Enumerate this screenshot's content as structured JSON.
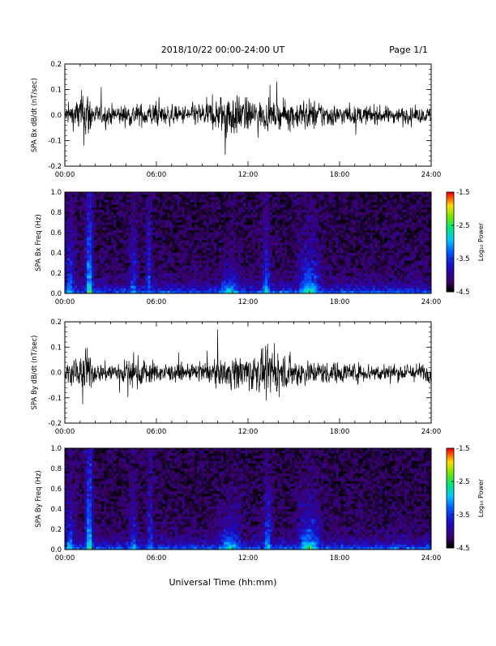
{
  "header": {
    "title": "2018/10/22  00:00-24:00 UT",
    "page": "Page 1/1"
  },
  "footer": {
    "xlabel": "Universal Time (hh:mm)"
  },
  "colorbar": {
    "label": "Log₁₀ Power",
    "ticks": [
      "-1.5",
      "-2.5",
      "-3.5",
      "-4.5"
    ],
    "range": [
      -4.5,
      -1.5
    ]
  },
  "chart_data": [
    {
      "type": "line",
      "ylabel": "SPA Bx dB/dt (nT/sec)",
      "ylim": [
        -0.2,
        0.2
      ],
      "yticks": [
        "0.2",
        "0.1",
        "0.0",
        "-0.1",
        "-0.2"
      ],
      "xlim_hours": [
        0,
        24
      ],
      "xticks": [
        "00:00",
        "06:00",
        "12:00",
        "18:00",
        "24:00"
      ],
      "amplitude_profile": [
        {
          "t": 0.0,
          "a": 0.07
        },
        {
          "t": 0.7,
          "a": 0.12
        },
        {
          "t": 1.4,
          "a": 0.25
        },
        {
          "t": 2.0,
          "a": 0.08
        },
        {
          "t": 4.5,
          "a": 0.09
        },
        {
          "t": 5.5,
          "a": 0.1
        },
        {
          "t": 7.5,
          "a": 0.07
        },
        {
          "t": 10.0,
          "a": 0.13
        },
        {
          "t": 10.6,
          "a": 0.22
        },
        {
          "t": 11.5,
          "a": 0.15
        },
        {
          "t": 13.5,
          "a": 0.1
        },
        {
          "t": 16.0,
          "a": 0.13
        },
        {
          "t": 18.0,
          "a": 0.08
        },
        {
          "t": 21.0,
          "a": 0.07
        },
        {
          "t": 24.0,
          "a": 0.06
        }
      ]
    },
    {
      "type": "heatmap",
      "ylabel": "SPA Bx Freq (Hz)",
      "ylim": [
        0.0,
        1.0
      ],
      "yticks": [
        "1.0",
        "0.8",
        "0.6",
        "0.4",
        "0.2",
        "0.0"
      ],
      "xlim_hours": [
        0,
        24
      ],
      "xticks": [
        "00:00",
        "06:00",
        "12:00",
        "18:00",
        "24:00"
      ],
      "zlim": [
        -4.5,
        -1.5
      ],
      "features": [
        {
          "t": 0.3,
          "w": 0.4,
          "f": 0.55,
          "z": -3.4
        },
        {
          "t": 1.6,
          "w": 0.25,
          "f": 1.0,
          "z": -2.9
        },
        {
          "t": 4.5,
          "w": 0.3,
          "f": 0.6,
          "z": -3.5
        },
        {
          "t": 5.5,
          "w": 0.2,
          "f": 0.9,
          "z": -3.5
        },
        {
          "t": 10.8,
          "w": 0.8,
          "f": 0.2,
          "z": -3.3
        },
        {
          "t": 13.2,
          "w": 0.3,
          "f": 0.45,
          "z": -3.2
        },
        {
          "t": 16.0,
          "w": 0.8,
          "f": 0.35,
          "z": -3.1
        }
      ]
    },
    {
      "type": "line",
      "ylabel": "SPA By dB/dt (nT/sec)",
      "ylim": [
        -0.2,
        0.2
      ],
      "yticks": [
        "0.2",
        "0.1",
        "0.0",
        "-0.1",
        "-0.2"
      ],
      "xlim_hours": [
        0,
        24
      ],
      "xticks": [
        "00:00",
        "06:00",
        "12:00",
        "18:00",
        "24:00"
      ],
      "amplitude_profile": [
        {
          "t": 0.0,
          "a": 0.06
        },
        {
          "t": 0.8,
          "a": 0.12
        },
        {
          "t": 1.4,
          "a": 0.2
        },
        {
          "t": 2.0,
          "a": 0.07
        },
        {
          "t": 5.0,
          "a": 0.12
        },
        {
          "t": 6.0,
          "a": 0.08
        },
        {
          "t": 8.0,
          "a": 0.06
        },
        {
          "t": 10.5,
          "a": 0.11
        },
        {
          "t": 11.2,
          "a": 0.14
        },
        {
          "t": 13.3,
          "a": 0.17
        },
        {
          "t": 16.0,
          "a": 0.1
        },
        {
          "t": 19.0,
          "a": 0.08
        },
        {
          "t": 22.0,
          "a": 0.07
        },
        {
          "t": 24.0,
          "a": 0.08
        }
      ]
    },
    {
      "type": "heatmap",
      "ylabel": "SPA By Freq (Hz)",
      "ylim": [
        0.0,
        1.0
      ],
      "yticks": [
        "1.0",
        "0.8",
        "0.6",
        "0.4",
        "0.2",
        "0.0"
      ],
      "xlim_hours": [
        0,
        24
      ],
      "xticks": [
        "00:00",
        "06:00",
        "12:00",
        "18:00",
        "24:00"
      ],
      "zlim": [
        -4.5,
        -1.5
      ],
      "features": [
        {
          "t": 0.3,
          "w": 0.4,
          "f": 0.5,
          "z": -3.4
        },
        {
          "t": 1.6,
          "w": 0.25,
          "f": 1.0,
          "z": -2.9
        },
        {
          "t": 4.5,
          "w": 0.3,
          "f": 0.5,
          "z": -3.5
        },
        {
          "t": 5.6,
          "w": 0.2,
          "f": 0.8,
          "z": -3.5
        },
        {
          "t": 10.8,
          "w": 0.8,
          "f": 0.25,
          "z": -3.2
        },
        {
          "t": 13.3,
          "w": 0.3,
          "f": 0.45,
          "z": -3.2
        },
        {
          "t": 16.0,
          "w": 0.8,
          "f": 0.3,
          "z": -3.0
        }
      ]
    }
  ]
}
